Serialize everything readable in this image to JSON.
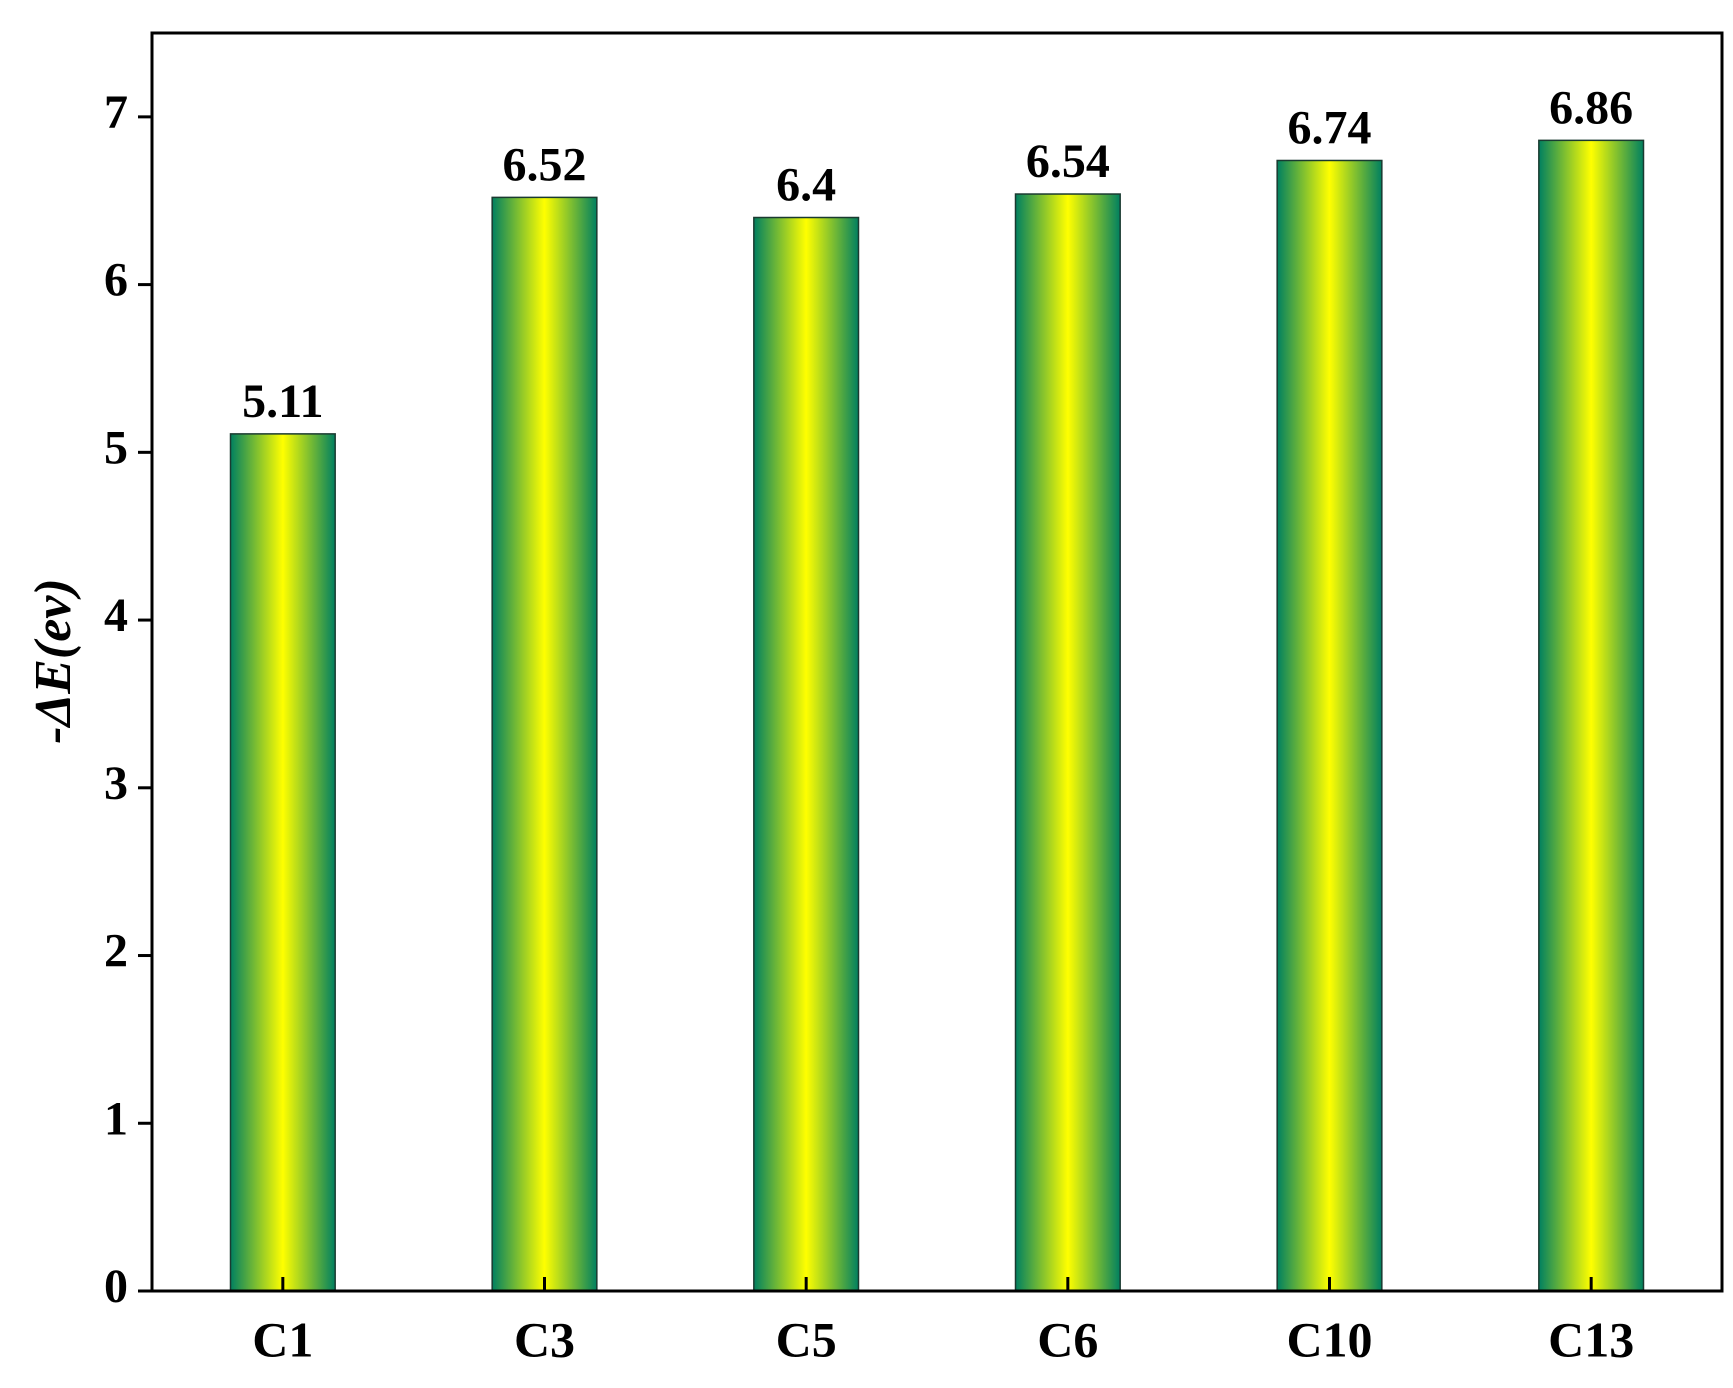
{
  "chart_data": {
    "type": "bar",
    "y_label": "-ΔE(ev)",
    "categories": [
      "C1",
      "C3",
      "C5",
      "C6",
      "C10",
      "C13"
    ],
    "values": [
      5.11,
      6.52,
      6.4,
      6.54,
      6.74,
      6.86
    ],
    "colors": [
      "#008060",
      "#ffff00"
    ],
    "ylim": [
      0,
      7.5
    ],
    "yticks": [
      0,
      1,
      2,
      3,
      4,
      5,
      6,
      7
    ],
    "grid": false
  }
}
